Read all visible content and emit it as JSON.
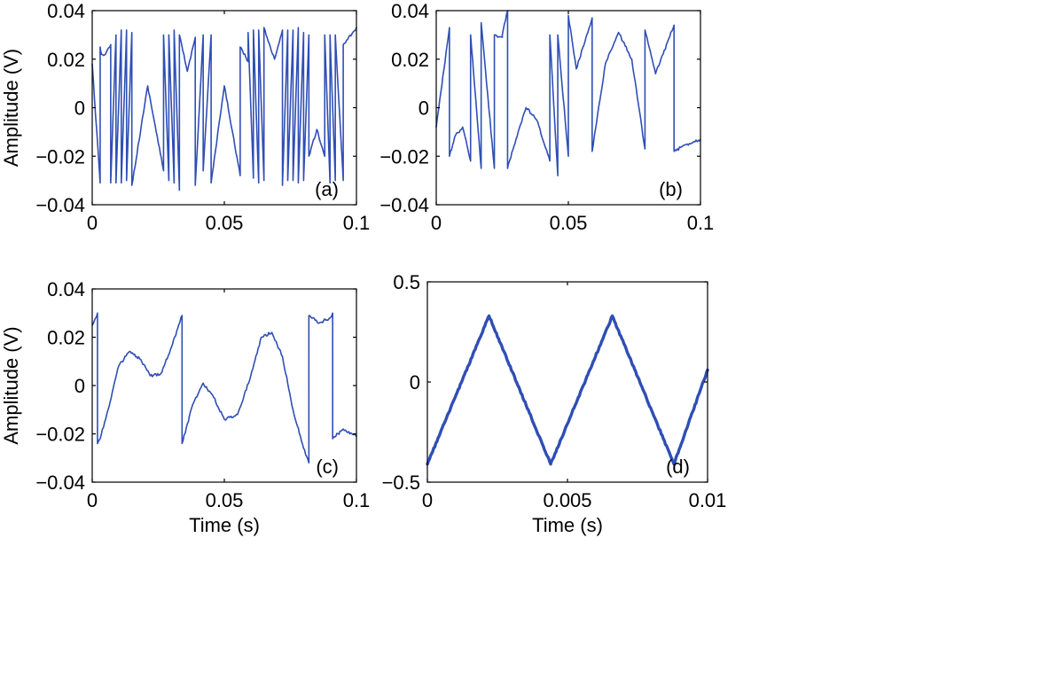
{
  "chart_data": [
    {
      "type": "line",
      "panel_label": "(a)",
      "xlabel": "",
      "ylabel": "Amplitude (V)",
      "xlim": [
        0,
        0.1
      ],
      "ylim": [
        -0.04,
        0.04
      ],
      "xticks": [
        0,
        0.05,
        0.1
      ],
      "xtick_labels": [
        "0",
        "0.05",
        "0.1"
      ],
      "yticks": [
        0.04,
        0.02,
        0,
        -0.02,
        -0.04
      ],
      "ytick_labels": [
        "0.04",
        "0.02",
        "0",
        "−0.02",
        "−0.04"
      ],
      "series": [
        {
          "x": [
            0,
            0.003,
            0.003,
            0.0035,
            0.005,
            0.007,
            0.007,
            0.009,
            0.009,
            0.011,
            0.011,
            0.013,
            0.013,
            0.015,
            0.015,
            0.021,
            0.027,
            0.027,
            0.029,
            0.029,
            0.031,
            0.031,
            0.033,
            0.033,
            0.036,
            0.039,
            0.039,
            0.042,
            0.042,
            0.045,
            0.045,
            0.05,
            0.056,
            0.056,
            0.059,
            0.059,
            0.061,
            0.061,
            0.063,
            0.063,
            0.065,
            0.065,
            0.069,
            0.072,
            0.072,
            0.074,
            0.074,
            0.076,
            0.076,
            0.078,
            0.078,
            0.08,
            0.08,
            0.082,
            0.082,
            0.085,
            0.088,
            0.088,
            0.09,
            0.09,
            0.092,
            0.092,
            0.095,
            0.095,
            0.1
          ],
          "y": [
            0.018,
            -0.031,
            0.025,
            0.022,
            0.022,
            0.026,
            -0.031,
            0.03,
            -0.031,
            0.032,
            -0.031,
            0.032,
            -0.03,
            0.031,
            -0.032,
            0.009,
            -0.026,
            0.03,
            -0.03,
            0.03,
            -0.031,
            0.032,
            -0.034,
            0.03,
            0.015,
            0.029,
            -0.032,
            0.03,
            -0.026,
            0.03,
            -0.031,
            0.009,
            -0.028,
            0.025,
            0.019,
            0.031,
            -0.029,
            0.032,
            -0.031,
            0.032,
            -0.03,
            0.033,
            0.02,
            0.032,
            -0.032,
            0.032,
            -0.03,
            0.032,
            -0.03,
            0.033,
            -0.031,
            0.031,
            -0.03,
            0.03,
            -0.02,
            -0.009,
            -0.02,
            0.03,
            -0.031,
            0.03,
            -0.03,
            0.03,
            -0.03,
            0.026,
            0.033
          ]
        }
      ]
    },
    {
      "type": "line",
      "panel_label": "(b)",
      "xlabel": "",
      "ylabel": "",
      "xlim": [
        0,
        0.1
      ],
      "ylim": [
        -0.04,
        0.04
      ],
      "xticks": [
        0,
        0.05,
        0.1
      ],
      "xtick_labels": [
        "0",
        "0.05",
        "0.1"
      ],
      "yticks": [
        0.04,
        0.02,
        0,
        -0.02,
        -0.04
      ],
      "ytick_labels": [
        "0.04",
        "0.02",
        "0",
        "−0.02",
        "−0.04"
      ],
      "series": [
        {
          "x": [
            0,
            0.005,
            0.005,
            0.007,
            0.01,
            0.013,
            0.013,
            0.017,
            0.017,
            0.022,
            0.022,
            0.025,
            0.025,
            0.027,
            0.027,
            0.031,
            0.034,
            0.038,
            0.043,
            0.043,
            0.046,
            0.046,
            0.05,
            0.05,
            0.053,
            0.059,
            0.059,
            0.064,
            0.069,
            0.074,
            0.079,
            0.079,
            0.083,
            0.09,
            0.09,
            0.095,
            0.1
          ],
          "y": [
            -0.008,
            0.033,
            -0.02,
            -0.012,
            -0.008,
            -0.022,
            0.03,
            -0.025,
            0.035,
            -0.025,
            0.03,
            0.029,
            0.03,
            0.04,
            -0.025,
            -0.01,
            0.0,
            -0.005,
            -0.022,
            0.03,
            -0.028,
            0.03,
            -0.02,
            0.038,
            0.016,
            0.037,
            -0.018,
            0.018,
            0.031,
            0.02,
            -0.017,
            0.032,
            0.014,
            0.034,
            -0.018,
            -0.015,
            -0.013
          ]
        }
      ]
    },
    {
      "type": "line",
      "panel_label": "(c)",
      "xlabel": "Time (s)",
      "ylabel": "Amplitude (V)",
      "xlim": [
        0,
        0.1
      ],
      "ylim": [
        -0.04,
        0.04
      ],
      "xticks": [
        0,
        0.05,
        0.1
      ],
      "xtick_labels": [
        "0",
        "0.05",
        "0.1"
      ],
      "yticks": [
        0.04,
        0.02,
        0,
        -0.02,
        -0.04
      ],
      "ytick_labels": [
        "0.04",
        "0.02",
        "0",
        "−0.02",
        "−0.04"
      ],
      "series": [
        {
          "x": [
            0,
            0.002,
            0.002,
            0.003,
            0.006,
            0.01,
            0.014,
            0.018,
            0.022,
            0.026,
            0.03,
            0.034,
            0.034,
            0.038,
            0.042,
            0.046,
            0.05,
            0.055,
            0.06,
            0.064,
            0.068,
            0.072,
            0.076,
            0.08,
            0.082,
            0.082,
            0.086,
            0.09,
            0.091,
            0.091,
            0.095,
            0.1
          ],
          "y": [
            0.025,
            0.03,
            -0.024,
            -0.022,
            -0.01,
            0.008,
            0.014,
            0.011,
            0.004,
            0.005,
            0.016,
            0.029,
            -0.024,
            -0.008,
            0.001,
            -0.005,
            -0.014,
            -0.012,
            0.004,
            0.02,
            0.022,
            0.012,
            -0.01,
            -0.026,
            -0.032,
            0.029,
            0.026,
            0.028,
            0.03,
            -0.022,
            -0.018,
            -0.021
          ]
        }
      ]
    },
    {
      "type": "line",
      "panel_label": "(d)",
      "xlabel": "Time (s)",
      "ylabel": "",
      "xlim": [
        0,
        0.01
      ],
      "ylim": [
        -0.5,
        0.5
      ],
      "xticks": [
        0,
        0.005,
        0.01
      ],
      "xtick_labels": [
        "0",
        "0.005",
        "0.01"
      ],
      "yticks": [
        0.5,
        0,
        -0.5
      ],
      "ytick_labels": [
        "0.5",
        "0",
        "−0.5"
      ],
      "series": [
        {
          "x": [
            0,
            0.0022,
            0.0044,
            0.0066,
            0.0088,
            0.01
          ],
          "y": [
            -0.41,
            0.33,
            -0.41,
            0.33,
            -0.41,
            0.06
          ]
        }
      ]
    }
  ]
}
